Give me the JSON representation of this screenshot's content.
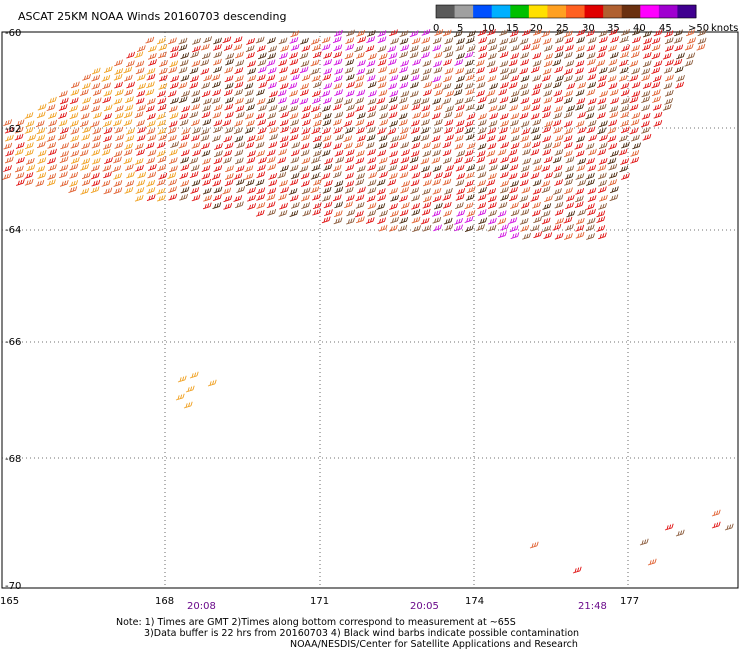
{
  "title": "ASCAT 25KM NOAA Winds 20160703 descending",
  "legend": {
    "ticks": [
      "0",
      "5",
      "10",
      "15",
      "20",
      "25",
      "30",
      "35",
      "40",
      "45",
      ">50"
    ],
    "unit": "knots",
    "colors": [
      "#5a5a5a",
      "#a0a0a0",
      "#0050ff",
      "#00b0ff",
      "#00c000",
      "#ffe000",
      "#ffa020",
      "#ff6020",
      "#e00000",
      "#b06030",
      "#6a3010",
      "#ff00ff",
      "#a000d0",
      "#400090"
    ]
  },
  "latitudes": [
    "-60",
    "-62",
    "-64",
    "-66",
    "-68",
    "-70"
  ],
  "longitudes": [
    "165",
    "168",
    "171",
    "174",
    "177"
  ],
  "times": [
    "20:08",
    "20:05",
    "21:48"
  ],
  "notes": [
    "Note: 1) Times are GMT 2)Times along bottom correspond to measurement at ~65S",
    "3)Data buffer is 22 hrs from 20160703 4) Black wind barbs indicate possible contamination",
    "NOAA/NESDIS/Center for Satellite Applications and Research"
  ],
  "barb_colors": {
    "orange": "#f0a020",
    "red_orange": "#e06030",
    "red": "#e01010",
    "brown": "#8a5a3a",
    "dark_brown": "#4a2a10",
    "magenta": "#d010e0"
  }
}
